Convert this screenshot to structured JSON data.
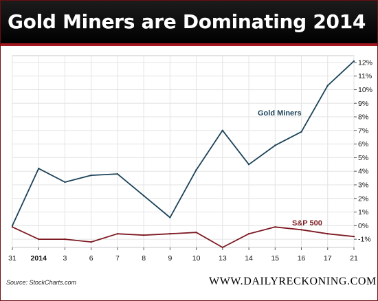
{
  "header": {
    "title": "Gold Miners are Dominating 2014"
  },
  "footer": {
    "source": "Source: StockCharts.com",
    "brand": "WWW.DAILYRECKONING.COM"
  },
  "colors": {
    "gold_miners": "#1b4258",
    "sp500": "#7d1a22",
    "title_rule": "#a31820"
  },
  "chart_data": {
    "type": "line",
    "title": "Gold Miners are Dominating 2014",
    "xlabel": "",
    "ylabel": "",
    "x": [
      "31",
      "2014",
      "3",
      "6",
      "7",
      "8",
      "9",
      "10",
      "13",
      "14",
      "15",
      "16",
      "17",
      "21"
    ],
    "x_bold": [
      "2014"
    ],
    "ylim": [
      -1.6,
      12.5
    ],
    "yticks": [
      -1,
      0,
      1,
      2,
      3,
      4,
      5,
      6,
      7,
      8,
      9,
      10,
      11,
      12
    ],
    "ytick_labels": [
      "-1%",
      "0%",
      "1%",
      "2%",
      "3%",
      "4%",
      "5%",
      "6%",
      "7%",
      "8%",
      "9%",
      "10%",
      "11%",
      "12%"
    ],
    "y_axis_side": "right",
    "grid": true,
    "series": [
      {
        "name": "Gold Miners",
        "color": "#1b4258",
        "values": [
          0.0,
          4.2,
          3.2,
          3.7,
          3.8,
          2.2,
          0.6,
          4.1,
          7.0,
          4.5,
          5.9,
          6.9,
          10.3,
          12.1
        ]
      },
      {
        "name": "S&P 500",
        "color": "#7d1a22",
        "values": [
          -0.1,
          -1.0,
          -1.0,
          -1.2,
          -0.6,
          -0.7,
          -0.6,
          -0.5,
          -1.6,
          -0.6,
          -0.1,
          -0.3,
          -0.6,
          -0.8
        ]
      }
    ]
  }
}
